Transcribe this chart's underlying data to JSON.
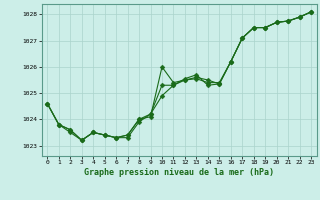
{
  "background_color": "#cceee8",
  "plot_bg_color": "#cceee8",
  "grid_color": "#aad4cc",
  "line_color": "#1a6b1a",
  "title": "Graphe pression niveau de la mer (hPa)",
  "ylim": [
    1022.6,
    1028.4
  ],
  "xlim": [
    -0.5,
    23.5
  ],
  "yticks": [
    1023,
    1024,
    1025,
    1026,
    1027,
    1028
  ],
  "xticks": [
    0,
    1,
    2,
    3,
    4,
    5,
    6,
    7,
    8,
    9,
    10,
    11,
    12,
    13,
    14,
    15,
    16,
    17,
    18,
    19,
    20,
    21,
    22,
    23
  ],
  "series": [
    [
      1024.6,
      1023.8,
      1023.6,
      1023.2,
      1023.5,
      1023.4,
      1023.3,
      1023.4,
      1024.0,
      1024.1,
      1026.0,
      1025.4,
      1025.5,
      1025.55,
      1025.4,
      1025.4,
      1026.2,
      1027.1,
      1027.5,
      1027.5,
      1027.7,
      1027.75,
      1027.9,
      1028.1
    ],
    [
      1024.6,
      1023.8,
      1023.6,
      1023.2,
      1023.5,
      1023.4,
      1023.3,
      1023.4,
      1024.0,
      1024.2,
      1024.9,
      1025.3,
      1025.5,
      1025.6,
      1025.5,
      1025.35,
      1026.2,
      1027.1,
      1027.5,
      1027.5,
      1027.7,
      1027.75,
      1027.9,
      1028.1
    ],
    [
      1024.6,
      1023.8,
      1023.5,
      1023.2,
      1023.5,
      1023.4,
      1023.3,
      1023.3,
      1023.9,
      1024.2,
      1025.3,
      1025.3,
      1025.55,
      1025.7,
      1025.3,
      1025.35,
      1026.2,
      1027.1,
      1027.5,
      1027.5,
      1027.7,
      1027.75,
      1027.9,
      1028.1
    ]
  ],
  "marker_size": 2.5,
  "linewidth": 0.8,
  "title_fontsize": 6.0,
  "tick_fontsize": 4.5
}
